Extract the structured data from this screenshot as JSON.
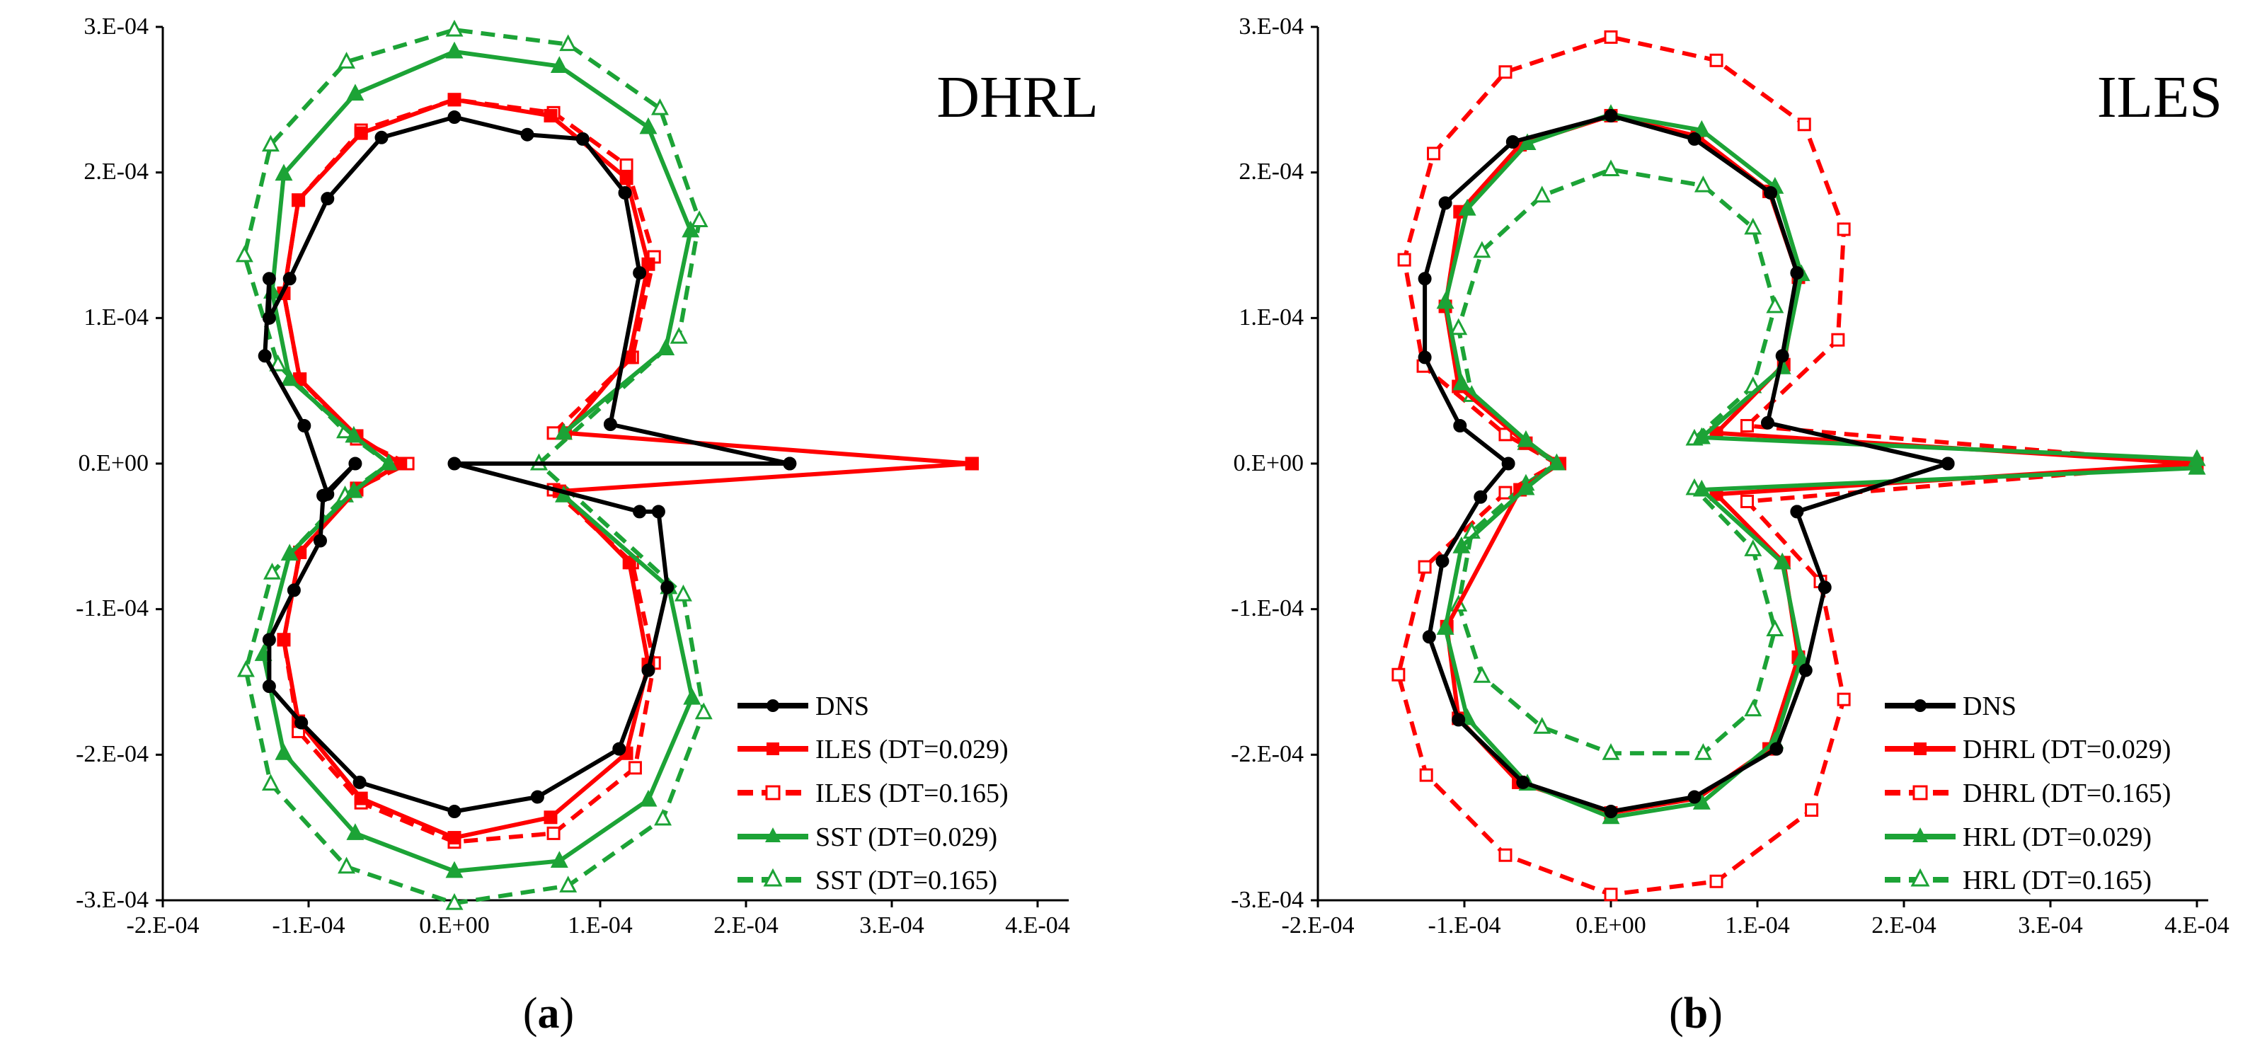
{
  "chart_data": [
    {
      "type": "line",
      "panel": "a",
      "title": "DHRL",
      "caption": {
        "open": "(",
        "letter": "a",
        "close": ")"
      },
      "xlim": [
        -0.0002,
        0.0004
      ],
      "ylim": [
        -0.0003,
        0.0003
      ],
      "x_tick_labels": [
        "-2.E-04",
        "-1.E-04",
        "0.E+00",
        "1.E-04",
        "2.E-04",
        "3.E-04",
        "4.E-04"
      ],
      "y_tick_labels": [
        "3.E-04",
        "2.E-04",
        "1.E-04",
        "0.E+00",
        "-1.E-04",
        "-2.E-04",
        "-3.E-04"
      ],
      "grid": false,
      "legend_position": "bottom-right",
      "series": [
        {
          "name": "DNS",
          "color": "#000000",
          "dashed": false,
          "marker": "circle",
          "filled": true,
          "x": [
            0.00023,
            0.000107,
            0.000127,
            0.000117,
            8.8e-05,
            5e-05,
            0,
            -5e-05,
            -8.7e-05,
            -0.000113,
            -0.000127,
            -0.000127,
            -0.00013,
            -0.000103,
            -8.7e-05,
            -6.8e-05,
            -9e-05,
            -9.2e-05,
            -0.00011,
            -0.000127,
            -0.000127,
            -0.000105,
            -6.5e-05,
            0,
            5.7e-05,
            0.000113,
            0.000133,
            0.000146,
            0.00014,
            0.000127,
            0.0,
            0.00023
          ],
          "y": [
            0,
            2.7e-05,
            0.000131,
            0.000186,
            0.000223,
            0.000226,
            0.000238,
            0.000224,
            0.000182,
            0.000127,
            0.0001,
            0.000127,
            7.4e-05,
            2.6e-05,
            -2.1e-05,
            0,
            -2.2e-05,
            -5.3e-05,
            -8.7e-05,
            -0.000121,
            -0.000153,
            -0.000178,
            -0.000219,
            -0.000239,
            -0.000229,
            -0.000196,
            -0.000142,
            -8.5e-05,
            -3.3e-05,
            -3.3e-05,
            0,
            0
          ]
        },
        {
          "name": "ILES (DT=0.029)",
          "color": "#ff0000",
          "dashed": false,
          "marker": "square",
          "filled": true,
          "x": [
            0.000355,
            7.6e-05,
            0.00012,
            0.000133,
            0.000118,
            6.6e-05,
            0,
            -6.4e-05,
            -0.000107,
            -0.000117,
            -0.000106,
            -6.7e-05,
            -3.7e-05,
            -6.7e-05,
            -0.000106,
            -0.000117,
            -0.000107,
            -6.4e-05,
            0,
            6.6e-05,
            0.000118,
            0.000133,
            0.00012,
            7.2e-05,
            0.000355
          ],
          "y": [
            0,
            2.1e-05,
            7.3e-05,
            0.000137,
            0.000196,
            0.000239,
            0.00025,
            0.000227,
            0.000181,
            0.000117,
            5.8e-05,
            1.9e-05,
            0,
            -1.8e-05,
            -6.1e-05,
            -0.000121,
            -0.000177,
            -0.00023,
            -0.000257,
            -0.000243,
            -0.000199,
            -0.000138,
            -6.8e-05,
            -1.9e-05,
            0
          ]
        },
        {
          "name": "ILES (DT=0.165)",
          "color": "#ff0000",
          "dashed": true,
          "marker": "square",
          "filled": false,
          "x": [
            6.8e-05,
            0.000122,
            0.000137,
            0.000118,
            6.8e-05,
            0,
            -6.4e-05,
            -0.000107,
            -0.000117,
            -0.000106,
            -6.7e-05,
            -3.2e-05,
            -6.7e-05,
            -0.000106,
            -0.000117,
            -0.000107,
            -6.4e-05,
            0,
            6.8e-05,
            0.000124,
            0.000137,
            0.000122,
            6.8e-05
          ],
          "y": [
            2.1e-05,
            7.3e-05,
            0.000142,
            0.000205,
            0.000241,
            0.00025,
            0.000229,
            0.000181,
            0.000117,
            5.8e-05,
            1.7e-05,
            0,
            -1.7e-05,
            -6.1e-05,
            -0.000121,
            -0.000184,
            -0.000233,
            -0.00026,
            -0.000254,
            -0.000209,
            -0.000137,
            -6.8e-05,
            -1.8e-05
          ]
        },
        {
          "name": "SST (DT=0.029)",
          "color": "#1ca336",
          "dashed": false,
          "marker": "triangle",
          "filled": true,
          "x": [
            7.5e-05,
            0.000145,
            0.000162,
            0.000133,
            7.2e-05,
            0,
            -6.8e-05,
            -0.000117,
            -0.000125,
            -0.000113,
            -6.9e-05,
            -4.5e-05,
            -6.9e-05,
            -0.000113,
            -0.000131,
            -0.000117,
            -6.8e-05,
            0,
            7.2e-05,
            0.000133,
            0.000163,
            0.000147,
            7.5e-05
          ],
          "y": [
            2.1e-05,
            7.9e-05,
            0.00016,
            0.000231,
            0.000273,
            0.000283,
            0.000254,
            0.000199,
            0.000118,
            5.8e-05,
            1.9e-05,
            0,
            -1.9e-05,
            -6.2e-05,
            -0.000131,
            -0.000199,
            -0.000254,
            -0.00028,
            -0.000273,
            -0.000231,
            -0.000161,
            -8.5e-05,
            -2.2e-05
          ]
        },
        {
          "name": "SST (DT=0.165)",
          "color": "#1ca336",
          "dashed": true,
          "marker": "triangle",
          "filled": false,
          "x": [
            5.8e-05,
            0.000154,
            0.000168,
            0.000141,
            7.8e-05,
            0,
            -7.4e-05,
            -0.000126,
            -0.000144,
            -0.000121,
            -7.5e-05,
            -4.5e-05,
            -7.5e-05,
            -0.000125,
            -0.000143,
            -0.000126,
            -7.4e-05,
            0,
            7.8e-05,
            0.000143,
            0.000171,
            0.000157,
            5.8e-05
          ],
          "y": [
            0,
            8.7e-05,
            0.000167,
            0.000244,
            0.000288,
            0.000298,
            0.000276,
            0.000219,
            0.000143,
            6.8e-05,
            2.2e-05,
            0,
            -2.2e-05,
            -7.5e-05,
            -0.000142,
            -0.00022,
            -0.000277,
            -0.000302,
            -0.00029,
            -0.000244,
            -0.000171,
            -9e-05,
            0
          ]
        }
      ]
    },
    {
      "type": "line",
      "panel": "b",
      "title": "ILES",
      "caption": {
        "open": "(",
        "letter": "b",
        "close": ")"
      },
      "xlim": [
        -0.0002,
        0.0004
      ],
      "ylim": [
        -0.0003,
        0.0003
      ],
      "x_tick_labels": [
        "-2.E-04",
        "-1.E-04",
        "0.E+00",
        "1.E-04",
        "2.E-04",
        "3.E-04",
        "4.E-04"
      ],
      "y_tick_labels": [
        "3.E-04",
        "2.E-04",
        "1.E-04",
        "0.E+00",
        "-1.E-04",
        "-2.E-04",
        "-3.E-04"
      ],
      "grid": false,
      "legend_position": "bottom-right",
      "series": [
        {
          "name": "DNS",
          "color": "#000000",
          "dashed": false,
          "marker": "circle",
          "filled": true,
          "x": [
            0.00023,
            0.000107,
            0.000117,
            0.000127,
            0.000109,
            5.7e-05,
            0,
            -6.7e-05,
            -0.000113,
            -0.000127,
            -0.000127,
            -0.000103,
            -7e-05,
            -8.9e-05,
            -0.000115,
            -0.000124,
            -0.000104,
            -6e-05,
            0,
            5.7e-05,
            0.000113,
            0.000133,
            0.000146,
            0.000127,
            0.00023
          ],
          "y": [
            0,
            2.8e-05,
            7.4e-05,
            0.000131,
            0.000186,
            0.000223,
            0.000239,
            0.000221,
            0.000179,
            0.000127,
            7.3e-05,
            2.6e-05,
            0,
            -2.3e-05,
            -6.7e-05,
            -0.000119,
            -0.000176,
            -0.000219,
            -0.000239,
            -0.000229,
            -0.000196,
            -0.000142,
            -8.5e-05,
            -3.3e-05,
            0
          ]
        },
        {
          "name": "DHRL (DT=0.029)",
          "color": "#ff0000",
          "dashed": false,
          "marker": "square",
          "filled": true,
          "x": [
            0.0004,
            7.2e-05,
            0.000118,
            0.000128,
            0.000108,
            5.9e-05,
            0,
            -6.2e-05,
            -0.000103,
            -0.000113,
            -0.000104,
            -5.8e-05,
            -3.5e-05,
            -6.2e-05,
            -0.000112,
            -0.000104,
            -6.3e-05,
            0,
            5.9e-05,
            0.000108,
            0.000128,
            0.000118,
            7.2e-05,
            0.0004
          ],
          "y": [
            0,
            2.1e-05,
            6.8e-05,
            0.000128,
            0.000187,
            0.000225,
            0.000239,
            0.000219,
            0.000173,
            0.000108,
            5.3e-05,
            1.4e-05,
            0,
            -1.8e-05,
            -0.000112,
            -0.000175,
            -0.000219,
            -0.00024,
            -0.00023,
            -0.000196,
            -0.000133,
            -6.8e-05,
            -2.1e-05,
            0
          ]
        },
        {
          "name": "DHRL (DT=0.165)",
          "color": "#ff0000",
          "dashed": true,
          "marker": "square",
          "filled": false,
          "x": [
            0.0004,
            9.3e-05,
            0.000155,
            0.000159,
            0.000132,
            7.2e-05,
            0,
            -7.2e-05,
            -0.000121,
            -0.000141,
            -0.000128,
            -7.2e-05,
            -3.7e-05,
            -7.2e-05,
            -0.000127,
            -0.000145,
            -0.000126,
            -7.2e-05,
            0,
            7.2e-05,
            0.000137,
            0.000159,
            0.000143,
            9.3e-05,
            0.0004
          ],
          "y": [
            0,
            2.6e-05,
            8.5e-05,
            0.000161,
            0.000233,
            0.000277,
            0.000293,
            0.000269,
            0.000213,
            0.00014,
            6.7e-05,
            2e-05,
            0,
            -2e-05,
            -7.1e-05,
            -0.000145,
            -0.000214,
            -0.000269,
            -0.000296,
            -0.000287,
            -0.000238,
            -0.000162,
            -8.1e-05,
            -2.6e-05,
            0
          ]
        },
        {
          "name": "HRL (DT=0.029)",
          "color": "#1ca336",
          "dashed": false,
          "marker": "triangle",
          "filled": true,
          "x": [
            0.0004,
            6.2e-05,
            0.000117,
            0.00013,
            0.000112,
            6.2e-05,
            0,
            -5.7e-05,
            -9.8e-05,
            -0.000113,
            -0.000102,
            -5.8e-05,
            -3.7e-05,
            -5.8e-05,
            -0.000102,
            -0.000113,
            -9.8e-05,
            -5.7e-05,
            0,
            6.2e-05,
            0.000112,
            0.00013,
            0.000117,
            6.2e-05,
            0.0004
          ],
          "y": [
            3e-06,
            1.8e-05,
            6.6e-05,
            0.00013,
            0.00019,
            0.000229,
            0.00024,
            0.00022,
            0.000175,
            0.000111,
            5.5e-05,
            1.6e-05,
            0,
            -1.7e-05,
            -5.7e-05,
            -0.000113,
            -0.000175,
            -0.00022,
            -0.000243,
            -0.000233,
            -0.000191,
            -0.000134,
            -6.8e-05,
            -1.8e-05,
            -3e-06
          ]
        },
        {
          "name": "HRL (DT=0.165)",
          "color": "#1ca336",
          "dashed": true,
          "marker": "triangle",
          "filled": false,
          "x": [
            5.7e-05,
            9.7e-05,
            0.000112,
            9.7e-05,
            6.3e-05,
            0,
            -4.7e-05,
            -8.8e-05,
            -0.000104,
            -9.5e-05,
            -5.8e-05,
            -3.7e-05,
            -5.8e-05,
            -9.5e-05,
            -0.000104,
            -8.8e-05,
            -4.7e-05,
            0,
            6.3e-05,
            9.7e-05,
            0.000112,
            9.7e-05,
            5.7e-05
          ],
          "y": [
            1.7e-05,
            5.3e-05,
            0.000108,
            0.000162,
            0.000191,
            0.000202,
            0.000184,
            0.000146,
            9.3e-05,
            4.7e-05,
            1.4e-05,
            0,
            -1.4e-05,
            -4.7e-05,
            -9.7e-05,
            -0.000146,
            -0.000181,
            -0.000199,
            -0.000199,
            -0.000169,
            -0.000114,
            -5.9e-05,
            -1.7e-05
          ]
        }
      ]
    }
  ]
}
